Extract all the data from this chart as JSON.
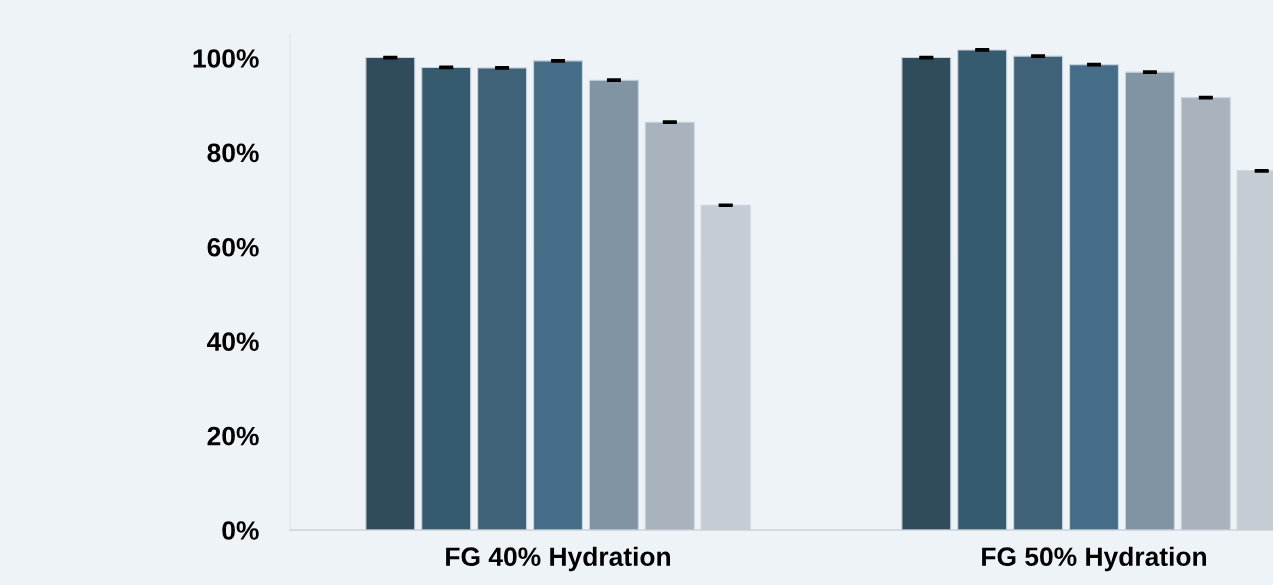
{
  "chart_data": {
    "type": "bar",
    "categories": [
      "FG 40% Hydration",
      "FG 50% Hydration"
    ],
    "series": [
      {
        "color": "#2f4b5c",
        "values": [
          100.1,
          100.1
        ],
        "errors": [
          0.1,
          0.1
        ]
      },
      {
        "color": "#365a6e",
        "values": [
          98.0,
          101.7
        ],
        "errors": [
          0.1,
          0.1
        ]
      },
      {
        "color": "#3f6279",
        "values": [
          97.9,
          100.4
        ],
        "errors": [
          0.1,
          0.1
        ]
      },
      {
        "color": "#466d87",
        "values": [
          99.4,
          98.6
        ],
        "errors": [
          0.1,
          0.1
        ]
      },
      {
        "color": "#8194a3",
        "values": [
          95.3,
          97.0
        ],
        "errors": [
          0.1,
          0.1
        ]
      },
      {
        "color": "#a9b3bd",
        "values": [
          86.4,
          91.6
        ],
        "errors": [
          0.1,
          0.1
        ]
      },
      {
        "color": "#c5ccd4",
        "values": [
          68.8,
          76.1
        ],
        "errors": [
          0.1,
          0.1
        ]
      }
    ],
    "ylim": [
      0,
      105
    ],
    "yticks": [
      {
        "value": 0,
        "label": "0%"
      },
      {
        "value": 20,
        "label": "20%"
      },
      {
        "value": 40,
        "label": "40%"
      },
      {
        "value": 60,
        "label": "60%"
      },
      {
        "value": 80,
        "label": "80%"
      },
      {
        "value": 100,
        "label": "100%"
      }
    ],
    "grid": false,
    "legend": false
  }
}
